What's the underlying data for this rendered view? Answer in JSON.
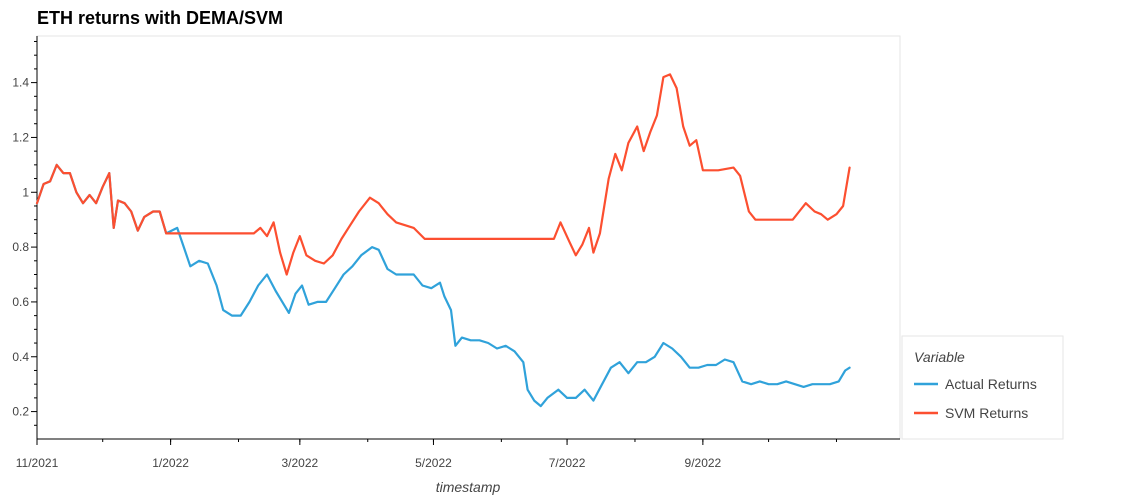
{
  "chart_data": {
    "type": "line",
    "title": "ETH returns with DEMA/SVM",
    "xlabel": "timestamp",
    "ylabel": "",
    "x_start": "2021-11-01",
    "x_end": "2022-11-30",
    "ylim": [
      0.1,
      1.57
    ],
    "yticks": [
      0.2,
      0.4,
      0.6,
      0.8,
      1,
      1.2,
      1.4
    ],
    "ytick_labels": [
      "0.2",
      "0.4",
      "0.6",
      "0.8",
      "1",
      "1.2",
      "1.4"
    ],
    "xticks": [
      "2021-11-01",
      "2022-01-01",
      "2022-03-01",
      "2022-05-01",
      "2022-07-01",
      "2022-09-01"
    ],
    "xtick_labels": [
      "11/2021",
      "1/2022",
      "3/2022",
      "5/2022",
      "7/2022",
      "9/2022"
    ],
    "legend": {
      "title": "Variable",
      "position": "right-bottom"
    },
    "series": [
      {
        "name": "Actual Returns",
        "color": "#30a2da",
        "points": [
          [
            "2021-11-01",
            0.96
          ],
          [
            "2021-11-04",
            1.03
          ],
          [
            "2021-11-07",
            1.04
          ],
          [
            "2021-11-10",
            1.1
          ],
          [
            "2021-11-13",
            1.07
          ],
          [
            "2021-11-16",
            1.07
          ],
          [
            "2021-11-19",
            1.0
          ],
          [
            "2021-11-22",
            0.96
          ],
          [
            "2021-11-25",
            0.99
          ],
          [
            "2021-11-28",
            0.96
          ],
          [
            "2021-12-01",
            1.02
          ],
          [
            "2021-12-04",
            1.07
          ],
          [
            "2021-12-06",
            0.87
          ],
          [
            "2021-12-08",
            0.97
          ],
          [
            "2021-12-11",
            0.96
          ],
          [
            "2021-12-14",
            0.93
          ],
          [
            "2021-12-17",
            0.86
          ],
          [
            "2021-12-20",
            0.91
          ],
          [
            "2021-12-24",
            0.93
          ],
          [
            "2021-12-27",
            0.93
          ],
          [
            "2021-12-30",
            0.85
          ],
          [
            "2022-01-04",
            0.87
          ],
          [
            "2022-01-07",
            0.8
          ],
          [
            "2022-01-10",
            0.73
          ],
          [
            "2022-01-14",
            0.75
          ],
          [
            "2022-01-18",
            0.74
          ],
          [
            "2022-01-22",
            0.66
          ],
          [
            "2022-01-25",
            0.57
          ],
          [
            "2022-01-29",
            0.55
          ],
          [
            "2022-02-02",
            0.55
          ],
          [
            "2022-02-06",
            0.6
          ],
          [
            "2022-02-10",
            0.66
          ],
          [
            "2022-02-14",
            0.7
          ],
          [
            "2022-02-18",
            0.64
          ],
          [
            "2022-02-21",
            0.6
          ],
          [
            "2022-02-24",
            0.56
          ],
          [
            "2022-02-27",
            0.63
          ],
          [
            "2022-03-02",
            0.66
          ],
          [
            "2022-03-05",
            0.59
          ],
          [
            "2022-03-09",
            0.6
          ],
          [
            "2022-03-13",
            0.6
          ],
          [
            "2022-03-17",
            0.65
          ],
          [
            "2022-03-21",
            0.7
          ],
          [
            "2022-03-25",
            0.73
          ],
          [
            "2022-03-29",
            0.77
          ],
          [
            "2022-04-03",
            0.8
          ],
          [
            "2022-04-06",
            0.79
          ],
          [
            "2022-04-10",
            0.72
          ],
          [
            "2022-04-14",
            0.7
          ],
          [
            "2022-04-18",
            0.7
          ],
          [
            "2022-04-22",
            0.7
          ],
          [
            "2022-04-26",
            0.66
          ],
          [
            "2022-04-30",
            0.65
          ],
          [
            "2022-05-04",
            0.67
          ],
          [
            "2022-05-06",
            0.62
          ],
          [
            "2022-05-09",
            0.57
          ],
          [
            "2022-05-11",
            0.44
          ],
          [
            "2022-05-14",
            0.47
          ],
          [
            "2022-05-18",
            0.46
          ],
          [
            "2022-05-22",
            0.46
          ],
          [
            "2022-05-26",
            0.45
          ],
          [
            "2022-05-30",
            0.43
          ],
          [
            "2022-06-03",
            0.44
          ],
          [
            "2022-06-07",
            0.42
          ],
          [
            "2022-06-11",
            0.38
          ],
          [
            "2022-06-13",
            0.28
          ],
          [
            "2022-06-16",
            0.24
          ],
          [
            "2022-06-19",
            0.22
          ],
          [
            "2022-06-22",
            0.25
          ],
          [
            "2022-06-27",
            0.28
          ],
          [
            "2022-07-01",
            0.25
          ],
          [
            "2022-07-05",
            0.25
          ],
          [
            "2022-07-09",
            0.28
          ],
          [
            "2022-07-13",
            0.24
          ],
          [
            "2022-07-17",
            0.3
          ],
          [
            "2022-07-21",
            0.36
          ],
          [
            "2022-07-25",
            0.38
          ],
          [
            "2022-07-29",
            0.34
          ],
          [
            "2022-08-02",
            0.38
          ],
          [
            "2022-08-06",
            0.38
          ],
          [
            "2022-08-10",
            0.4
          ],
          [
            "2022-08-14",
            0.45
          ],
          [
            "2022-08-18",
            0.43
          ],
          [
            "2022-08-22",
            0.4
          ],
          [
            "2022-08-26",
            0.36
          ],
          [
            "2022-08-30",
            0.36
          ],
          [
            "2022-09-03",
            0.37
          ],
          [
            "2022-09-07",
            0.37
          ],
          [
            "2022-09-11",
            0.39
          ],
          [
            "2022-09-15",
            0.38
          ],
          [
            "2022-09-19",
            0.31
          ],
          [
            "2022-09-23",
            0.3
          ],
          [
            "2022-09-27",
            0.31
          ],
          [
            "2022-10-01",
            0.3
          ],
          [
            "2022-10-05",
            0.3
          ],
          [
            "2022-10-09",
            0.31
          ],
          [
            "2022-10-13",
            0.3
          ],
          [
            "2022-10-17",
            0.29
          ],
          [
            "2022-10-21",
            0.3
          ],
          [
            "2022-10-25",
            0.3
          ],
          [
            "2022-10-29",
            0.3
          ],
          [
            "2022-11-02",
            0.31
          ],
          [
            "2022-11-05",
            0.35
          ],
          [
            "2022-11-07",
            0.36
          ]
        ]
      },
      {
        "name": "SVM Returns",
        "color": "#fc4f30",
        "points": [
          [
            "2021-11-01",
            0.96
          ],
          [
            "2021-11-04",
            1.03
          ],
          [
            "2021-11-07",
            1.04
          ],
          [
            "2021-11-10",
            1.1
          ],
          [
            "2021-11-13",
            1.07
          ],
          [
            "2021-11-16",
            1.07
          ],
          [
            "2021-11-19",
            1.0
          ],
          [
            "2021-11-22",
            0.96
          ],
          [
            "2021-11-25",
            0.99
          ],
          [
            "2021-11-28",
            0.96
          ],
          [
            "2021-12-01",
            1.02
          ],
          [
            "2021-12-04",
            1.07
          ],
          [
            "2021-12-06",
            0.87
          ],
          [
            "2021-12-08",
            0.97
          ],
          [
            "2021-12-11",
            0.96
          ],
          [
            "2021-12-14",
            0.93
          ],
          [
            "2021-12-17",
            0.86
          ],
          [
            "2021-12-20",
            0.91
          ],
          [
            "2021-12-24",
            0.93
          ],
          [
            "2021-12-27",
            0.93
          ],
          [
            "2021-12-30",
            0.85
          ],
          [
            "2022-02-08",
            0.85
          ],
          [
            "2022-02-11",
            0.87
          ],
          [
            "2022-02-14",
            0.84
          ],
          [
            "2022-02-17",
            0.89
          ],
          [
            "2022-02-20",
            0.78
          ],
          [
            "2022-02-23",
            0.7
          ],
          [
            "2022-02-26",
            0.78
          ],
          [
            "2022-03-01",
            0.84
          ],
          [
            "2022-03-04",
            0.77
          ],
          [
            "2022-03-08",
            0.75
          ],
          [
            "2022-03-12",
            0.74
          ],
          [
            "2022-03-16",
            0.77
          ],
          [
            "2022-03-20",
            0.83
          ],
          [
            "2022-03-24",
            0.88
          ],
          [
            "2022-03-28",
            0.93
          ],
          [
            "2022-04-02",
            0.98
          ],
          [
            "2022-04-06",
            0.96
          ],
          [
            "2022-04-10",
            0.92
          ],
          [
            "2022-04-14",
            0.89
          ],
          [
            "2022-04-18",
            0.88
          ],
          [
            "2022-04-22",
            0.87
          ],
          [
            "2022-04-27",
            0.83
          ],
          [
            "2022-06-25",
            0.83
          ],
          [
            "2022-06-28",
            0.89
          ],
          [
            "2022-07-02",
            0.82
          ],
          [
            "2022-07-05",
            0.77
          ],
          [
            "2022-07-08",
            0.81
          ],
          [
            "2022-07-11",
            0.87
          ],
          [
            "2022-07-13",
            0.78
          ],
          [
            "2022-07-16",
            0.85
          ],
          [
            "2022-07-20",
            1.05
          ],
          [
            "2022-07-23",
            1.14
          ],
          [
            "2022-07-26",
            1.08
          ],
          [
            "2022-07-29",
            1.18
          ],
          [
            "2022-08-02",
            1.24
          ],
          [
            "2022-08-05",
            1.15
          ],
          [
            "2022-08-08",
            1.22
          ],
          [
            "2022-08-11",
            1.28
          ],
          [
            "2022-08-14",
            1.42
          ],
          [
            "2022-08-17",
            1.43
          ],
          [
            "2022-08-20",
            1.38
          ],
          [
            "2022-08-23",
            1.24
          ],
          [
            "2022-08-26",
            1.17
          ],
          [
            "2022-08-29",
            1.19
          ],
          [
            "2022-09-01",
            1.08
          ],
          [
            "2022-09-08",
            1.08
          ],
          [
            "2022-09-15",
            1.09
          ],
          [
            "2022-09-18",
            1.06
          ],
          [
            "2022-09-22",
            0.93
          ],
          [
            "2022-09-25",
            0.9
          ],
          [
            "2022-10-12",
            0.9
          ],
          [
            "2022-10-15",
            0.93
          ],
          [
            "2022-10-18",
            0.96
          ],
          [
            "2022-10-22",
            0.93
          ],
          [
            "2022-10-25",
            0.92
          ],
          [
            "2022-10-28",
            0.9
          ],
          [
            "2022-11-01",
            0.92
          ],
          [
            "2022-11-04",
            0.95
          ],
          [
            "2022-11-07",
            1.09
          ]
        ]
      }
    ]
  }
}
